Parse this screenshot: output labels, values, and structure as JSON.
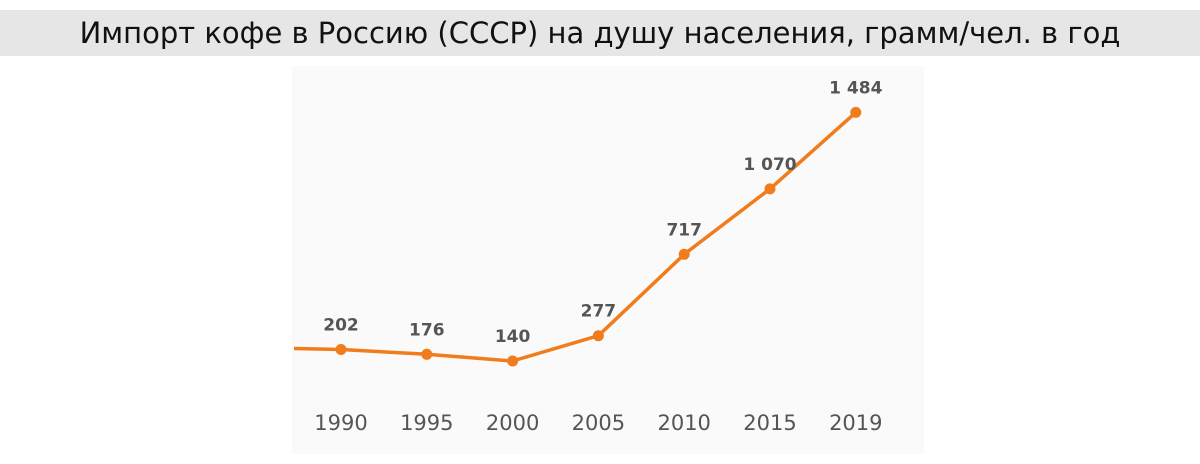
{
  "title": "Импорт кофе в Россию (СССР) на душу населения, грамм/чел. в год",
  "colors": {
    "line": "#f07c1c",
    "title_bg": "#e6e6e6",
    "panel_bg": "#fafafa",
    "label": "#555555"
  },
  "chart_data": {
    "type": "line",
    "title": "Импорт кофе в Россию (СССР) на душу населения, грамм/чел. в год",
    "xlabel": "",
    "ylabel": "",
    "categories": [
      "1990",
      "1995",
      "2000",
      "2005",
      "2010",
      "2015",
      "2019"
    ],
    "values": [
      202,
      176,
      140,
      277,
      717,
      1070,
      1484
    ],
    "value_labels": [
      "202",
      "176",
      "140",
      "277",
      "717",
      "1 070",
      "1 484"
    ],
    "line_extends_left_of_first_point": true,
    "grid": false,
    "legend": "none"
  }
}
